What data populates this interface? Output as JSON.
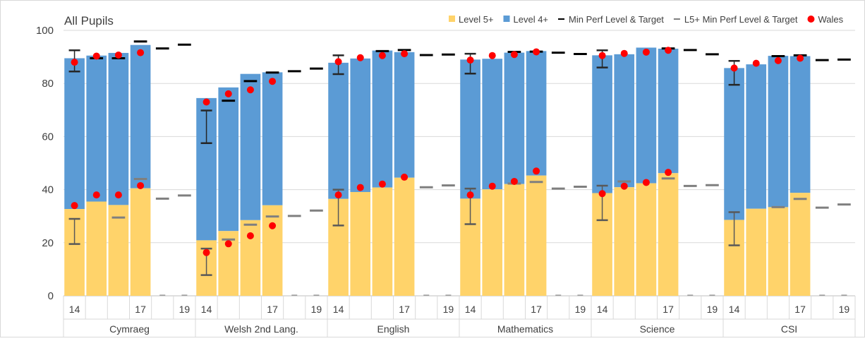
{
  "chart_data": {
    "type": "bar",
    "title": "All Pupils",
    "ylim": [
      0,
      100
    ],
    "yticks": [
      0,
      20,
      40,
      60,
      80,
      100
    ],
    "grid": true,
    "legend_placement": "top-right",
    "legend": [
      {
        "label": "Level 5+",
        "kind": "bar",
        "color": "#FFD36A"
      },
      {
        "label": "Level 4+",
        "kind": "bar",
        "color": "#5B9BD5"
      },
      {
        "label": "Min Perf Level & Target",
        "kind": "dash",
        "color": "#000000"
      },
      {
        "label": "L5+ Min Perf Level & Target",
        "kind": "dash",
        "color": "#7F7F7F"
      },
      {
        "label": "Wales",
        "kind": "dot",
        "color": "#FF0000"
      }
    ],
    "slot_labels": [
      "14",
      "",
      "",
      "17",
      "",
      "19"
    ],
    "groups": [
      {
        "name": "Cymraeg",
        "level4": [
          89.5,
          90.5,
          91.5,
          94.5
        ],
        "level5": [
          32.7,
          35.5,
          34.2,
          40.5
        ],
        "wales4": [
          88.0,
          90.3,
          90.7,
          91.6
        ],
        "wales5": [
          34.0,
          38.0,
          38.0,
          41.5
        ],
        "err4": [
          [
            84.5,
            92.5
          ],
          null,
          null,
          null
        ],
        "err5": [
          [
            19.5,
            29.0
          ],
          null,
          null,
          null
        ],
        "min4": [
          null,
          89.5,
          89.5,
          95.8,
          93.2,
          94.6
        ],
        "min5": [
          null,
          null,
          29.5,
          44.0,
          36.6,
          37.8
        ]
      },
      {
        "name": "Welsh 2nd Lang.",
        "level4": [
          74.5,
          78.5,
          83.6,
          84.2
        ],
        "level5": [
          20.9,
          24.4,
          28.5,
          34.1
        ],
        "wales4": [
          73.0,
          76.1,
          77.6,
          80.8
        ],
        "wales5": [
          16.3,
          19.6,
          22.6,
          26.4
        ],
        "err4": [
          [
            57.5,
            69.8
          ],
          null,
          null,
          null
        ],
        "err5": [
          [
            7.8,
            17.8
          ],
          null,
          null,
          null
        ],
        "min4": [
          null,
          73.5,
          80.9,
          84.1,
          84.6,
          85.6
        ],
        "min5": [
          null,
          21.2,
          26.8,
          29.9,
          30.1,
          32.1
        ]
      },
      {
        "name": "English",
        "level4": [
          87.8,
          89.4,
          92.4,
          91.8
        ],
        "level5": [
          36.5,
          39.1,
          40.8,
          44.5
        ],
        "wales4": [
          88.2,
          89.7,
          90.5,
          91.2
        ],
        "wales5": [
          38.0,
          40.8,
          42.1,
          44.7
        ],
        "err4": [
          [
            83.5,
            90.6
          ],
          null,
          null,
          null
        ],
        "err5": [
          [
            26.5,
            40.0
          ],
          null,
          null,
          null
        ],
        "min4": [
          null,
          null,
          92.2,
          92.6,
          90.7,
          90.9
        ],
        "min5": [
          null,
          null,
          null,
          null,
          40.9,
          41.6
        ]
      },
      {
        "name": "Mathematics",
        "level4": [
          89.0,
          89.3,
          91.6,
          92.2
        ],
        "level5": [
          36.6,
          40.1,
          42.1,
          45.3
        ],
        "wales4": [
          88.8,
          90.5,
          90.9,
          91.9
        ],
        "wales5": [
          38.0,
          41.3,
          43.1,
          47.0
        ],
        "err4": [
          [
            83.7,
            91.2
          ],
          null,
          null,
          null
        ],
        "err5": [
          [
            27.0,
            40.4
          ],
          null,
          null,
          null
        ],
        "min4": [
          null,
          null,
          91.9,
          92.0,
          91.6,
          91.1
        ],
        "min5": [
          null,
          null,
          42.3,
          42.9,
          40.4,
          41.1
        ]
      },
      {
        "name": "Science",
        "level4": [
          90.6,
          91.0,
          93.5,
          93.1
        ],
        "level5": [
          38.7,
          40.9,
          42.4,
          46.2
        ],
        "wales4": [
          90.5,
          91.3,
          91.8,
          92.5
        ],
        "wales5": [
          38.5,
          41.3,
          42.7,
          46.5
        ],
        "err4": [
          [
            86.0,
            92.5
          ],
          null,
          null,
          null
        ],
        "err5": [
          [
            28.5,
            41.5
          ],
          null,
          null,
          null
        ],
        "min4": [
          null,
          null,
          null,
          93.2,
          92.6,
          91.0
        ],
        "min5": [
          null,
          43.1,
          null,
          44.2,
          41.4,
          41.7
        ]
      },
      {
        "name": "CSI",
        "level4": [
          85.8,
          87.2,
          90.4,
          90.3
        ],
        "level5": [
          28.6,
          32.8,
          33.4,
          38.8
        ],
        "wales4": [
          85.8,
          87.6,
          88.6,
          89.5
        ],
        "wales5": null,
        "err4": [
          [
            79.5,
            88.5
          ],
          null,
          null,
          null
        ],
        "err5": [
          [
            19.0,
            31.5
          ],
          null,
          null,
          null
        ],
        "min4": [
          null,
          null,
          90.3,
          90.6,
          88.8,
          89.0
        ],
        "min5": [
          null,
          null,
          33.4,
          36.5,
          33.2,
          34.4
        ]
      }
    ]
  }
}
